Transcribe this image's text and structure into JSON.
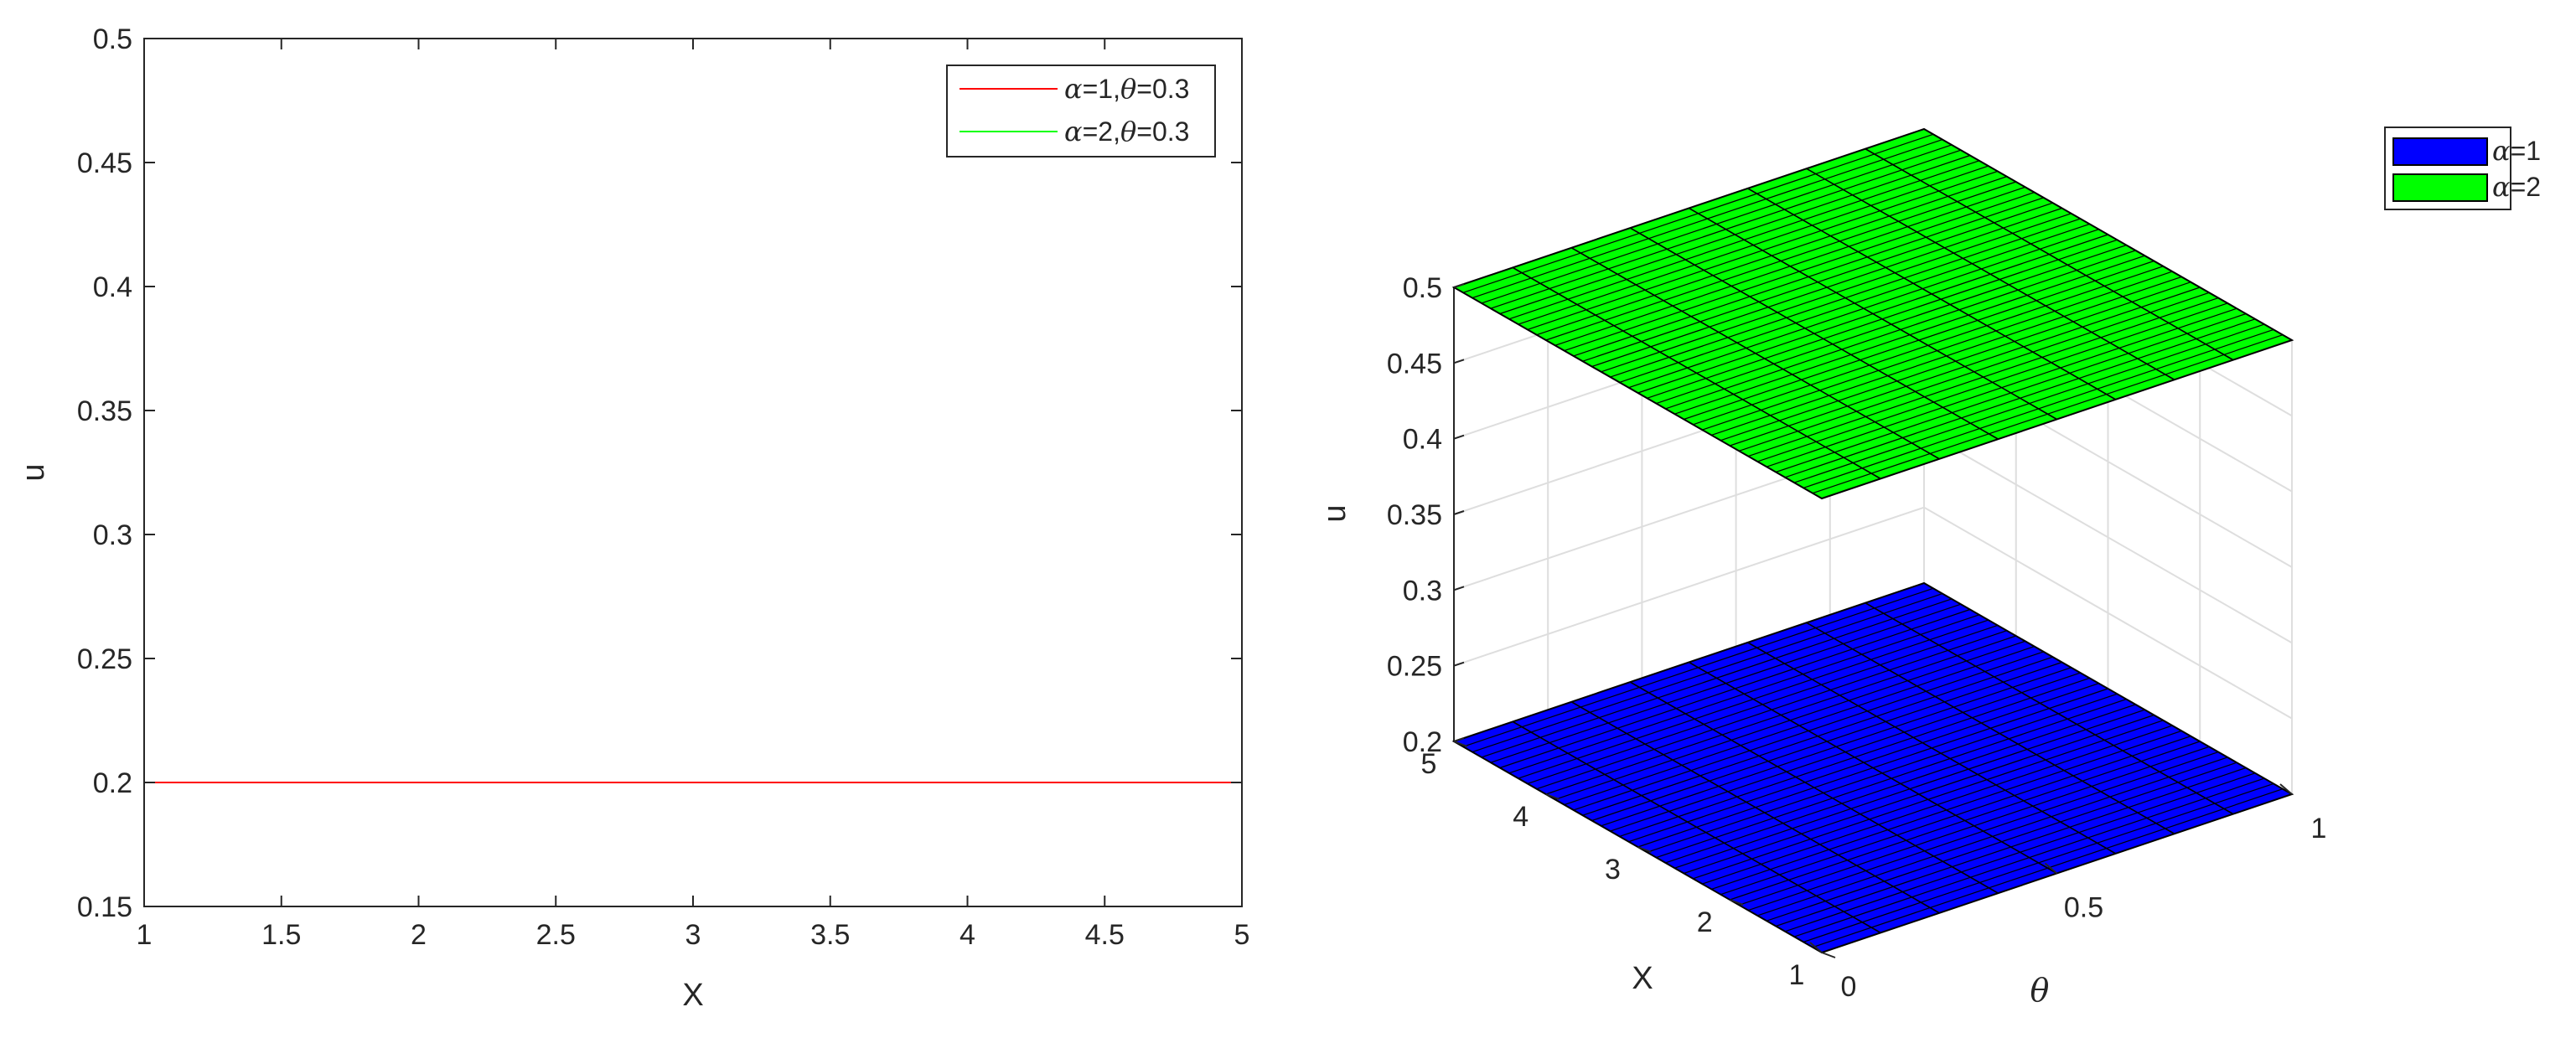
{
  "chart_data": [
    {
      "type": "line",
      "xlabel": "X",
      "ylabel": "u",
      "xlim": [
        1,
        5
      ],
      "ylim": [
        0.15,
        0.5
      ],
      "xticks": [
        "1",
        "1.5",
        "2",
        "2.5",
        "3",
        "3.5",
        "4",
        "4.5",
        "5"
      ],
      "yticks": [
        "0.15",
        "0.2",
        "0.25",
        "0.3",
        "0.35",
        "0.4",
        "0.45",
        "0.5"
      ],
      "grid": false,
      "legend_position": "top-right",
      "series": [
        {
          "legend_greek1": "α",
          "legend_mid": "=1,",
          "legend_greek2": "θ",
          "legend_tail": "=0.3",
          "color": "#ff0000",
          "x": [
            1,
            5
          ],
          "y": [
            0.2,
            0.2
          ]
        },
        {
          "legend_greek1": "α",
          "legend_mid": "=2,",
          "legend_greek2": "θ",
          "legend_tail": "=0.3",
          "color": "#00ff00",
          "x": [
            1,
            5
          ],
          "y": [
            0.5,
            0.5
          ]
        }
      ]
    },
    {
      "type": "surface",
      "xlabel": "θ",
      "ylabel": "X",
      "zlabel": "u",
      "theta_lim": [
        0,
        1
      ],
      "x_lim": [
        1,
        5
      ],
      "z_lim": [
        0.2,
        0.5
      ],
      "theta_ticks": [
        "0",
        "0.5",
        "1"
      ],
      "x_ticks": [
        "1",
        "2",
        "3",
        "4",
        "5"
      ],
      "z_ticks": [
        "0.2",
        "0.25",
        "0.3",
        "0.35",
        "0.4",
        "0.45",
        "0.5"
      ],
      "grid": true,
      "legend_position": "top-right",
      "series": [
        {
          "legend_greek": "α",
          "legend_tail": "=1",
          "color": "#0000ff",
          "z": 0.2
        },
        {
          "legend_greek": "α",
          "legend_tail": "=2",
          "color": "#00ff00",
          "z": 0.5
        }
      ]
    }
  ]
}
